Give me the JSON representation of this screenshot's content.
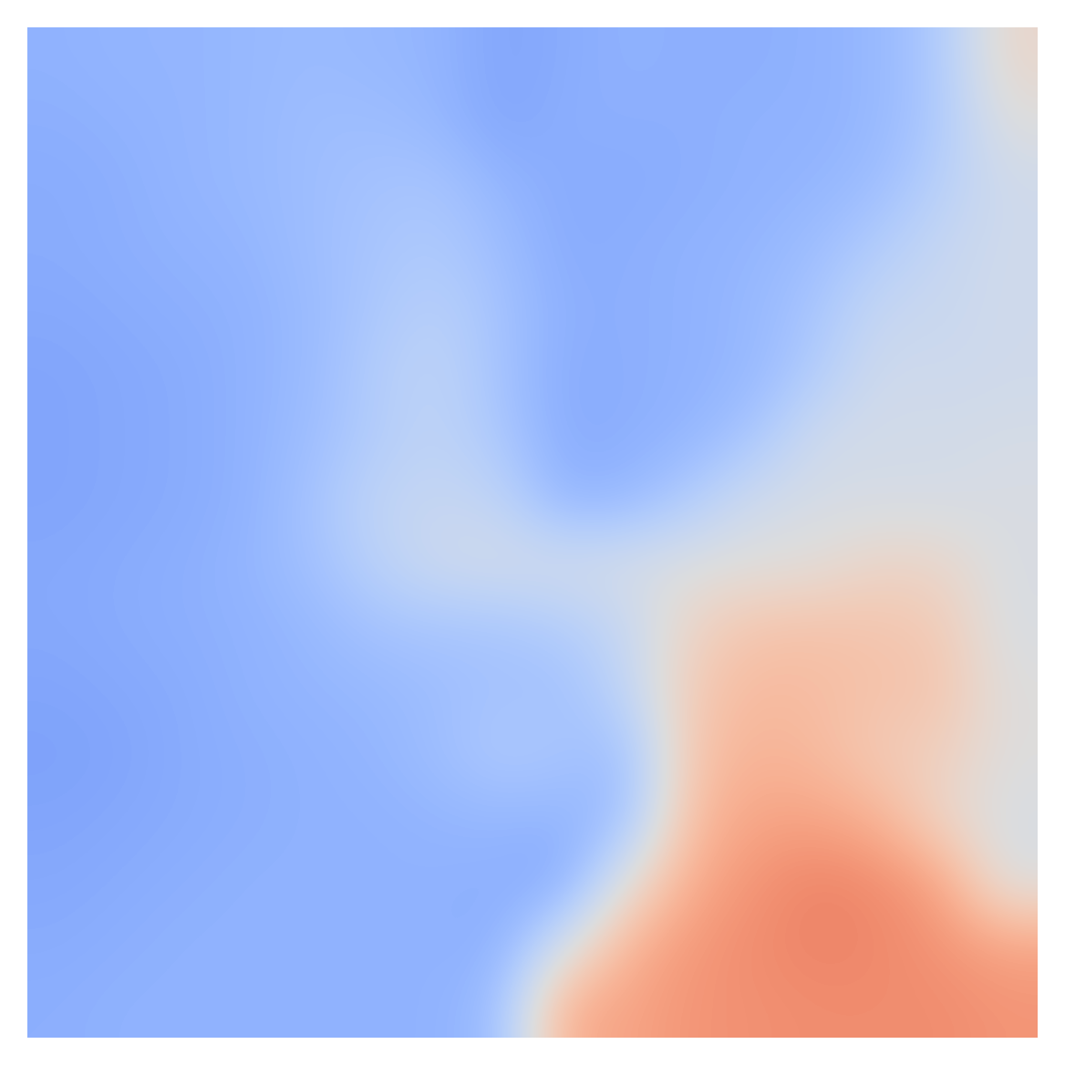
{
  "chart_data": {
    "type": "heatmap",
    "color": "coolwarm",
    "tick_labels": false,
    "color_range": [
      0,
      1
    ],
    "cells": [
      [
        0.26,
        0.27,
        0.27,
        0.28,
        0.29,
        0.28,
        0.27,
        0.22,
        0.24,
        0.26,
        0.25,
        0.25,
        0.26,
        0.28,
        0.35,
        0.55
      ],
      [
        0.25,
        0.26,
        0.27,
        0.28,
        0.3,
        0.3,
        0.28,
        0.22,
        0.25,
        0.25,
        0.25,
        0.26,
        0.26,
        0.28,
        0.35,
        0.5
      ],
      [
        0.24,
        0.25,
        0.27,
        0.28,
        0.3,
        0.32,
        0.33,
        0.27,
        0.24,
        0.24,
        0.25,
        0.26,
        0.27,
        0.3,
        0.38,
        0.45
      ],
      [
        0.24,
        0.25,
        0.26,
        0.27,
        0.3,
        0.33,
        0.35,
        0.3,
        0.24,
        0.25,
        0.26,
        0.27,
        0.3,
        0.36,
        0.42,
        0.45
      ],
      [
        0.23,
        0.24,
        0.25,
        0.26,
        0.29,
        0.34,
        0.38,
        0.32,
        0.25,
        0.25,
        0.26,
        0.28,
        0.33,
        0.42,
        0.43,
        0.45
      ],
      [
        0.22,
        0.23,
        0.24,
        0.26,
        0.29,
        0.36,
        0.4,
        0.32,
        0.24,
        0.25,
        0.26,
        0.28,
        0.36,
        0.45,
        0.44,
        0.45
      ],
      [
        0.22,
        0.23,
        0.24,
        0.26,
        0.3,
        0.36,
        0.4,
        0.34,
        0.24,
        0.25,
        0.27,
        0.33,
        0.45,
        0.46,
        0.46,
        0.47
      ],
      [
        0.22,
        0.23,
        0.24,
        0.26,
        0.32,
        0.4,
        0.42,
        0.4,
        0.27,
        0.28,
        0.36,
        0.45,
        0.47,
        0.47,
        0.47,
        0.48
      ],
      [
        0.23,
        0.24,
        0.25,
        0.27,
        0.31,
        0.38,
        0.44,
        0.46,
        0.46,
        0.47,
        0.49,
        0.5,
        0.51,
        0.56,
        0.55,
        0.48
      ],
      [
        0.23,
        0.24,
        0.25,
        0.26,
        0.28,
        0.32,
        0.33,
        0.33,
        0.36,
        0.42,
        0.56,
        0.62,
        0.63,
        0.62,
        0.6,
        0.48
      ],
      [
        0.22,
        0.23,
        0.24,
        0.26,
        0.27,
        0.28,
        0.3,
        0.32,
        0.31,
        0.4,
        0.6,
        0.66,
        0.65,
        0.63,
        0.62,
        0.5
      ],
      [
        0.21,
        0.22,
        0.24,
        0.25,
        0.26,
        0.27,
        0.3,
        0.35,
        0.33,
        0.3,
        0.62,
        0.68,
        0.66,
        0.6,
        0.58,
        0.5
      ],
      [
        0.22,
        0.23,
        0.24,
        0.25,
        0.26,
        0.26,
        0.27,
        0.28,
        0.27,
        0.3,
        0.65,
        0.72,
        0.72,
        0.68,
        0.55,
        0.48
      ],
      [
        0.23,
        0.24,
        0.25,
        0.26,
        0.26,
        0.26,
        0.26,
        0.25,
        0.23,
        0.5,
        0.7,
        0.76,
        0.8,
        0.78,
        0.72,
        0.48
      ],
      [
        0.24,
        0.25,
        0.26,
        0.26,
        0.26,
        0.26,
        0.26,
        0.25,
        0.45,
        0.68,
        0.75,
        0.78,
        0.8,
        0.79,
        0.76,
        0.72
      ],
      [
        0.25,
        0.26,
        0.26,
        0.26,
        0.26,
        0.26,
        0.26,
        0.3,
        0.7,
        0.72,
        0.76,
        0.77,
        0.78,
        0.78,
        0.78,
        0.76
      ]
    ]
  }
}
